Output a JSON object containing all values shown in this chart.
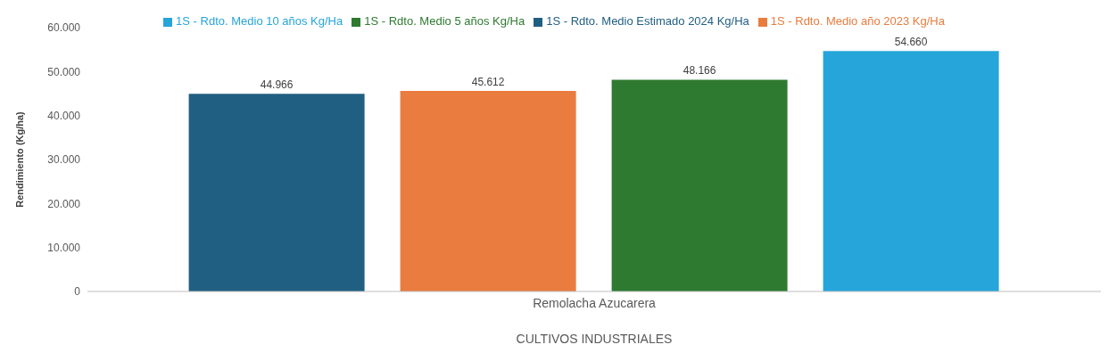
{
  "chart_data": {
    "type": "bar",
    "categories": [
      "Remolacha Azucarera"
    ],
    "xlabel": "CULTIVOS INDUSTRIALES",
    "ylabel": "Rendimiento (Kg/ha)",
    "series": [
      {
        "name": "1S - Rdto. Medio Estimado 2024 Kg/Ha",
        "color": "#215f82",
        "values": [
          44966
        ],
        "value_labels": [
          "44.966"
        ]
      },
      {
        "name": "1S - Rdto. Medio año 2023 Kg/Ha",
        "color": "#e97c3e",
        "values": [
          45612
        ],
        "value_labels": [
          "45.612"
        ]
      },
      {
        "name": "1S - Rdto. Medio 5 años Kg/Ha",
        "color": "#2e7a31",
        "values": [
          48166
        ],
        "value_labels": [
          "48.166"
        ]
      },
      {
        "name": "1S - Rdto. Medio 10 años Kg/Ha",
        "color": "#26a5db",
        "values": [
          54660
        ],
        "value_labels": [
          "54.660"
        ]
      }
    ],
    "ylim": [
      0,
      60000
    ],
    "yticks": [
      {
        "value": 0,
        "label": "0"
      },
      {
        "value": 10000,
        "label": "10.000"
      },
      {
        "value": 20000,
        "label": "20.000"
      },
      {
        "value": 30000,
        "label": "30.000"
      },
      {
        "value": 40000,
        "label": "40.000"
      },
      {
        "value": 50000,
        "label": "50.000"
      },
      {
        "value": 60000,
        "label": "60.000"
      }
    ],
    "grid": false,
    "legend": "top"
  }
}
